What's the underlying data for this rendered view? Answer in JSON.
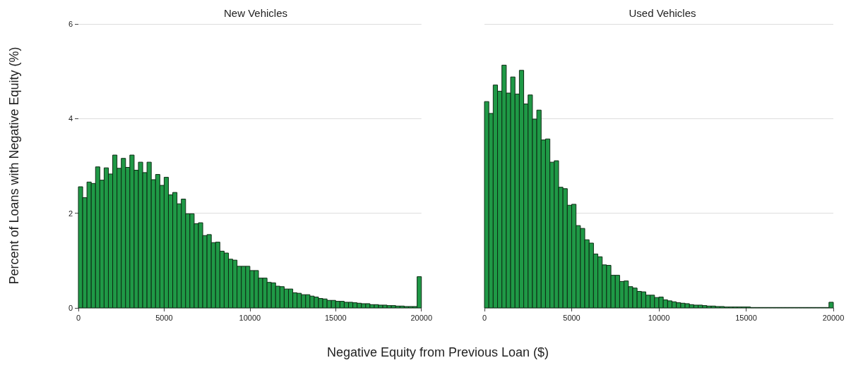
{
  "chart_data": [
    {
      "type": "histogram",
      "title": "New Vehicles",
      "ylabel": "Percent of Loans with Negative Equity (%)",
      "xlabel": "Negative Equity from Previous Loan ($)",
      "color": "#1f9946",
      "bins": [
        0,
        250,
        500,
        750,
        1000,
        1250,
        1500,
        1750,
        2000,
        2250,
        2500,
        2750,
        3000,
        3250,
        3500,
        3750,
        4000,
        4250,
        4500,
        4750,
        5000,
        5250,
        5500,
        5750,
        6000,
        6250,
        6500,
        6750,
        7000,
        7250,
        7500,
        7750,
        8000,
        8250,
        8500,
        8750,
        9000,
        9250,
        9500,
        9750,
        10000,
        10250,
        10500,
        10750,
        11000,
        11250,
        11500,
        11750,
        12000,
        12250,
        12500,
        12750,
        13000,
        13250,
        13500,
        13750,
        14000,
        14250,
        14500,
        14750,
        15000,
        15250,
        15500,
        15750,
        16000,
        16250,
        16500,
        16750,
        17000,
        17250,
        17500,
        17750,
        18000,
        18250,
        18500,
        18750,
        19000,
        19250,
        19500,
        19750,
        20000
      ],
      "values": [
        2.56,
        2.33,
        2.66,
        2.63,
        2.98,
        2.7,
        2.96,
        2.83,
        3.23,
        2.95,
        3.16,
        2.97,
        3.23,
        2.91,
        3.08,
        2.86,
        3.08,
        2.71,
        2.82,
        2.59,
        2.76,
        2.39,
        2.44,
        2.2,
        2.3,
        1.99,
        1.99,
        1.78,
        1.8,
        1.53,
        1.55,
        1.38,
        1.39,
        1.2,
        1.16,
        1.03,
        1.01,
        0.88,
        0.88,
        0.88,
        0.79,
        0.79,
        0.63,
        0.63,
        0.54,
        0.53,
        0.46,
        0.45,
        0.4,
        0.4,
        0.32,
        0.31,
        0.28,
        0.28,
        0.25,
        0.23,
        0.2,
        0.19,
        0.16,
        0.16,
        0.14,
        0.14,
        0.12,
        0.12,
        0.11,
        0.1,
        0.09,
        0.09,
        0.07,
        0.07,
        0.06,
        0.06,
        0.05,
        0.05,
        0.04,
        0.04,
        0.03,
        0.03,
        0.03,
        0.66
      ],
      "xlim": [
        0,
        20000
      ],
      "xticks": [
        0,
        5000,
        10000,
        15000,
        20000
      ],
      "ylim": [
        0,
        6
      ],
      "yticks": [
        0,
        2,
        4,
        6
      ],
      "grid": "y"
    },
    {
      "type": "histogram",
      "title": "Used Vehicles",
      "color": "#1f9946",
      "bins": [
        0,
        250,
        500,
        750,
        1000,
        1250,
        1500,
        1750,
        2000,
        2250,
        2500,
        2750,
        3000,
        3250,
        3500,
        3750,
        4000,
        4250,
        4500,
        4750,
        5000,
        5250,
        5500,
        5750,
        6000,
        6250,
        6500,
        6750,
        7000,
        7250,
        7500,
        7750,
        8000,
        8250,
        8500,
        8750,
        9000,
        9250,
        9500,
        9750,
        10000,
        10250,
        10500,
        10750,
        11000,
        11250,
        11500,
        11750,
        12000,
        12250,
        12500,
        12750,
        13000,
        13250,
        13500,
        13750,
        14000,
        14250,
        14500,
        14750,
        15000,
        15250,
        15500,
        15750,
        16000,
        16250,
        16500,
        16750,
        17000,
        17250,
        17500,
        17750,
        18000,
        18250,
        18500,
        18750,
        19000,
        19250,
        19500,
        19750,
        20000
      ],
      "values": [
        4.36,
        4.11,
        4.71,
        4.58,
        5.13,
        4.54,
        4.88,
        4.52,
        5.02,
        4.31,
        4.5,
        3.99,
        4.18,
        3.55,
        3.57,
        3.08,
        3.11,
        2.55,
        2.52,
        2.17,
        2.19,
        1.74,
        1.68,
        1.44,
        1.37,
        1.14,
        1.08,
        0.91,
        0.9,
        0.69,
        0.69,
        0.56,
        0.57,
        0.45,
        0.42,
        0.35,
        0.34,
        0.27,
        0.27,
        0.22,
        0.23,
        0.17,
        0.15,
        0.13,
        0.11,
        0.1,
        0.09,
        0.07,
        0.06,
        0.06,
        0.05,
        0.04,
        0.04,
        0.03,
        0.03,
        0.02,
        0.02,
        0.02,
        0.02,
        0.02,
        0.02,
        0.01,
        0.01,
        0.01,
        0.01,
        0.01,
        0.01,
        0.01,
        0.01,
        0.01,
        0.01,
        0.01,
        0.01,
        0.01,
        0.01,
        0.01,
        0.01,
        0.01,
        0.01,
        0.12
      ],
      "xlim": [
        0,
        20000
      ],
      "xticks": [
        0,
        5000,
        10000,
        15000,
        20000
      ],
      "ylim": [
        0,
        6
      ],
      "yticks": [
        0,
        2,
        4,
        6
      ],
      "grid": "y",
      "tick_labels": "x"
    }
  ]
}
